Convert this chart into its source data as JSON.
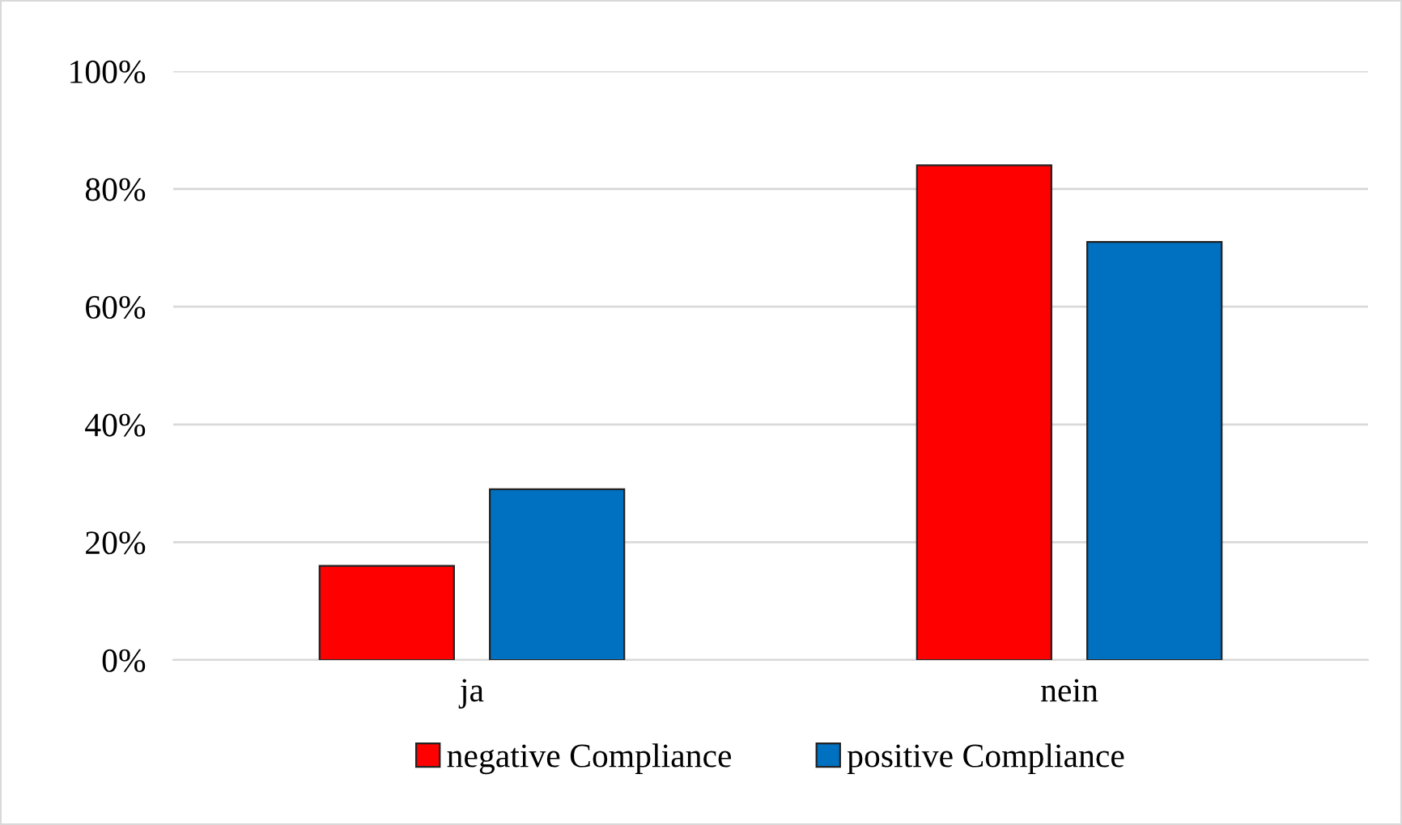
{
  "chart_data": {
    "type": "bar",
    "categories": [
      "ja",
      "nein"
    ],
    "series": [
      {
        "name": "negative Compliance",
        "color": "#ff0000",
        "values": [
          16,
          84
        ]
      },
      {
        "name": "positive Compliance",
        "color": "#0070c0",
        "values": [
          29,
          71
        ]
      }
    ],
    "ylim": [
      0,
      100
    ],
    "yticks": [
      {
        "value": 0,
        "label": "0%"
      },
      {
        "value": 20,
        "label": "20%"
      },
      {
        "value": 40,
        "label": "40%"
      },
      {
        "value": 60,
        "label": "60%"
      },
      {
        "value": 80,
        "label": "80%"
      },
      {
        "value": 100,
        "label": "100%"
      }
    ],
    "grid": "y",
    "legend": "bottom"
  }
}
